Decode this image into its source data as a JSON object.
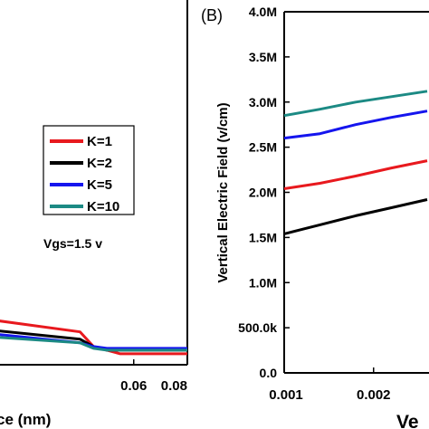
{
  "chart_data": [
    {
      "panel_label": "",
      "type": "line",
      "xlabel": "ce (nm)",
      "ylabel": "",
      "xlim": [
        0.0,
        0.08
      ],
      "ylim": [
        0.0,
        1.0
      ],
      "xticks": [
        0.06,
        0.08
      ],
      "xtick_labels": [
        "0.06",
        "0.08"
      ],
      "annotation": "Vgs=1.5 v",
      "legend_position": "center",
      "series": [
        {
          "name": "K=1",
          "color": "#e8191e",
          "x": [
            0.0,
            0.04,
            0.045,
            0.05,
            0.055,
            0.06,
            0.08
          ],
          "y": [
            0.13,
            0.09,
            0.05,
            0.04,
            0.03,
            0.03,
            0.03
          ]
        },
        {
          "name": "K=2",
          "color": "#000000",
          "x": [
            0.0,
            0.04,
            0.045,
            0.05,
            0.055,
            0.06,
            0.08
          ],
          "y": [
            0.1,
            0.07,
            0.05,
            0.04,
            0.04,
            0.04,
            0.04
          ]
        },
        {
          "name": "K=5",
          "color": "#1515ee",
          "x": [
            0.0,
            0.04,
            0.045,
            0.05,
            0.055,
            0.06,
            0.08
          ],
          "y": [
            0.09,
            0.06,
            0.05,
            0.045,
            0.045,
            0.045,
            0.045
          ]
        },
        {
          "name": "K=10",
          "color": "#1c8a84",
          "x": [
            0.0,
            0.04,
            0.045,
            0.05,
            0.055,
            0.06,
            0.08
          ],
          "y": [
            0.08,
            0.06,
            0.045,
            0.04,
            0.04,
            0.04,
            0.04
          ]
        }
      ]
    },
    {
      "panel_label": "(B)",
      "type": "line",
      "xlabel": "Ve",
      "ylabel": "Vertical Electric Field (v/cm)",
      "xlim": [
        0.001,
        0.00262
      ],
      "ylim": [
        0,
        4000000
      ],
      "xticks": [
        0.001,
        0.002
      ],
      "xtick_labels": [
        "0.001",
        "0.002"
      ],
      "yticks": [
        0,
        500000,
        1000000,
        1500000,
        2000000,
        2500000,
        3000000,
        3500000,
        4000000
      ],
      "ytick_labels": [
        "0.0",
        "500.0k",
        "1.0M",
        "1.5M",
        "2.0M",
        "2.5M",
        "3.0M",
        "3.5M",
        "4.0M"
      ],
      "series": [
        {
          "color": "#1c8a84",
          "x": [
            0.001,
            0.0014,
            0.0018,
            0.0022,
            0.0026
          ],
          "y": [
            2850000,
            2920000,
            3000000,
            3060000,
            3120000
          ]
        },
        {
          "color": "#1515ee",
          "x": [
            0.001,
            0.0014,
            0.0018,
            0.0022,
            0.0026
          ],
          "y": [
            2600000,
            2650000,
            2750000,
            2830000,
            2900000
          ]
        },
        {
          "color": "#e8191e",
          "x": [
            0.001,
            0.0014,
            0.0018,
            0.0022,
            0.0026
          ],
          "y": [
            2040000,
            2100000,
            2180000,
            2270000,
            2350000
          ]
        },
        {
          "color": "#000000",
          "x": [
            0.001,
            0.0014,
            0.0018,
            0.0022,
            0.0026
          ],
          "y": [
            1540000,
            1640000,
            1740000,
            1830000,
            1920000
          ]
        }
      ]
    }
  ]
}
